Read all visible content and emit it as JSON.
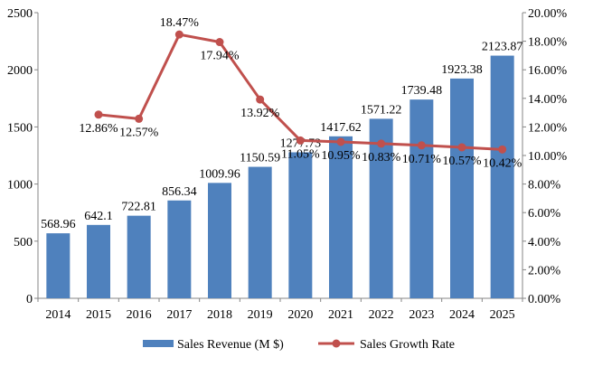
{
  "chart_data": {
    "type": "bar+line",
    "categories": [
      "2014",
      "2015",
      "2016",
      "2017",
      "2018",
      "2019",
      "2020",
      "2021",
      "2022",
      "2023",
      "2024",
      "2025"
    ],
    "series": [
      {
        "name": "Sales Revenue (M $)",
        "type": "bar",
        "axis": "left",
        "color": "#4f81bd",
        "values": [
          568.96,
          642.1,
          722.81,
          856.34,
          1009.96,
          1150.59,
          1277.73,
          1417.62,
          1571.22,
          1739.48,
          1923.38,
          2123.87
        ],
        "labels": [
          "568.96",
          "642.1",
          "722.81",
          "856.34",
          "1009.96",
          "1150.59",
          "1277.73",
          "1417.62",
          "1571.22",
          "1739.48",
          "1923.38",
          "2123.87"
        ]
      },
      {
        "name": "Sales Growth Rate",
        "type": "line",
        "axis": "right",
        "color": "#c0504d",
        "values": [
          null,
          12.86,
          12.57,
          18.47,
          17.94,
          13.92,
          11.05,
          10.95,
          10.83,
          10.71,
          10.57,
          10.42
        ],
        "labels": [
          null,
          "12.86%",
          "12.57%",
          "18.47%",
          "17.94%",
          "13.92%",
          "11.05%",
          "10.95%",
          "10.83%",
          "10.71%",
          "10.57%",
          "10.42%"
        ]
      }
    ],
    "y_left": {
      "range": [
        0,
        2500
      ],
      "ticks": [
        "0",
        "500",
        "1000",
        "1500",
        "2000",
        "2500"
      ]
    },
    "y_right": {
      "range": [
        0,
        20
      ],
      "ticks": [
        "0.00%",
        "2.00%",
        "4.00%",
        "6.00%",
        "8.00%",
        "10.00%",
        "12.00%",
        "14.00%",
        "16.00%",
        "18.00%",
        "20.00%"
      ]
    },
    "grid": false,
    "legend": "bottom"
  }
}
